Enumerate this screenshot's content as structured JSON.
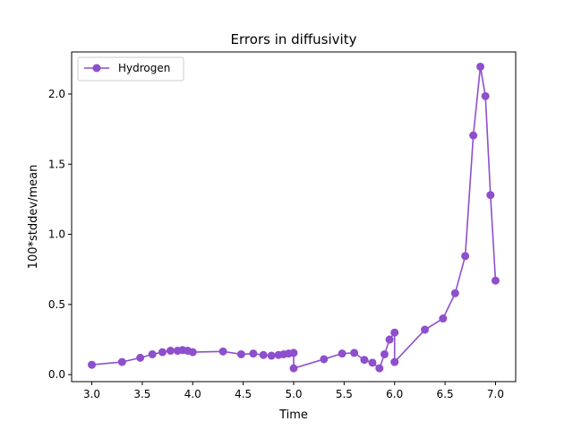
{
  "chart_data": {
    "type": "line",
    "title": "Errors in diffusivity",
    "xlabel": "Time",
    "ylabel": "100*stddev/mean",
    "xlim": [
      2.8,
      7.2
    ],
    "ylim": [
      -0.05,
      2.3
    ],
    "x_ticks": [
      "3.0",
      "3.5",
      "4.0",
      "4.5",
      "5.0",
      "5.5",
      "6.0",
      "6.5",
      "7.0"
    ],
    "x_tick_values": [
      3.0,
      3.5,
      4.0,
      4.5,
      5.0,
      5.5,
      6.0,
      6.5,
      7.0
    ],
    "y_ticks": [
      "0.0",
      "0.5",
      "1.0",
      "1.5",
      "2.0"
    ],
    "y_tick_values": [
      0.0,
      0.5,
      1.0,
      1.5,
      2.0
    ],
    "grid": false,
    "legend_position": "top-left",
    "series": [
      {
        "name": "Hydrogen",
        "color": "#8e4fcc",
        "marker": "circle",
        "points": [
          [
            3.0,
            0.07
          ],
          [
            3.3,
            0.09
          ],
          [
            3.48,
            0.12
          ],
          [
            3.6,
            0.145
          ],
          [
            3.7,
            0.16
          ],
          [
            3.78,
            0.17
          ],
          [
            3.85,
            0.17
          ],
          [
            3.9,
            0.175
          ],
          [
            3.95,
            0.17
          ],
          [
            4.0,
            0.16
          ],
          [
            4.3,
            0.165
          ],
          [
            4.48,
            0.145
          ],
          [
            4.6,
            0.15
          ],
          [
            4.7,
            0.14
          ],
          [
            4.78,
            0.135
          ],
          [
            4.85,
            0.14
          ],
          [
            4.9,
            0.145
          ],
          [
            4.95,
            0.15
          ],
          [
            5.0,
            0.155
          ],
          [
            5.0,
            0.045
          ],
          [
            5.3,
            0.11
          ],
          [
            5.48,
            0.15
          ],
          [
            5.6,
            0.155
          ],
          [
            5.7,
            0.105
          ],
          [
            5.78,
            0.085
          ],
          [
            5.85,
            0.045
          ],
          [
            5.9,
            0.145
          ],
          [
            5.95,
            0.25
          ],
          [
            6.0,
            0.3
          ],
          [
            6.0,
            0.09
          ],
          [
            6.3,
            0.32
          ],
          [
            6.48,
            0.4
          ],
          [
            6.6,
            0.58
          ],
          [
            6.7,
            0.845
          ],
          [
            6.78,
            1.705
          ],
          [
            6.85,
            2.195
          ],
          [
            6.9,
            1.985
          ],
          [
            6.95,
            1.28
          ],
          [
            7.0,
            0.67
          ]
        ]
      }
    ]
  }
}
